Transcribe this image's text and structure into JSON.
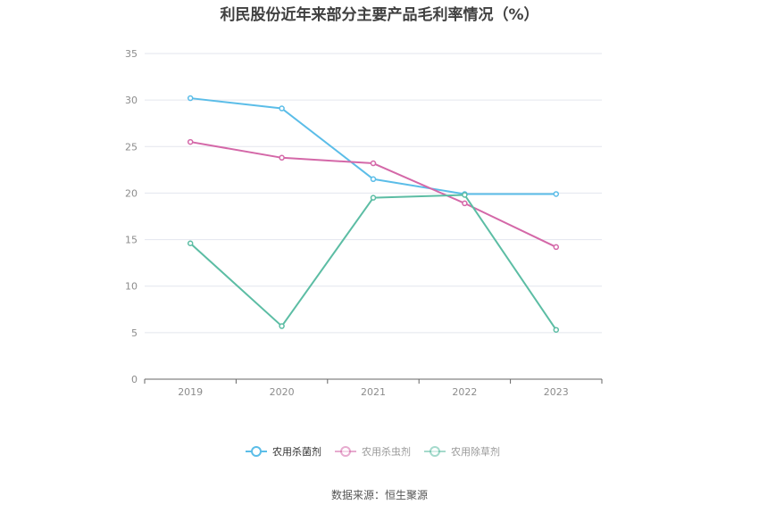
{
  "chart_data": {
    "type": "line",
    "title": "利民股份近年来部分主要产品毛利率情况（%）",
    "categories": [
      "2019",
      "2020",
      "2021",
      "2022",
      "2023"
    ],
    "ylim": [
      0,
      35
    ],
    "yticks": [
      0,
      5,
      10,
      15,
      20,
      25,
      30,
      35
    ],
    "grid": true,
    "legend_position": "bottom-center",
    "series": [
      {
        "name": "农用杀菌剂",
        "color": "#5bbde8",
        "values": [
          30.2,
          29.1,
          21.5,
          19.9,
          19.9
        ]
      },
      {
        "name": "农用杀虫剂",
        "color": "#d468a8",
        "values": [
          25.5,
          23.8,
          23.2,
          18.9,
          14.2
        ]
      },
      {
        "name": "农用除草剂",
        "color": "#5cbda4",
        "values": [
          14.6,
          5.7,
          19.5,
          19.8,
          5.3
        ]
      }
    ]
  },
  "footer": {
    "source": "数据来源：恒生聚源"
  }
}
